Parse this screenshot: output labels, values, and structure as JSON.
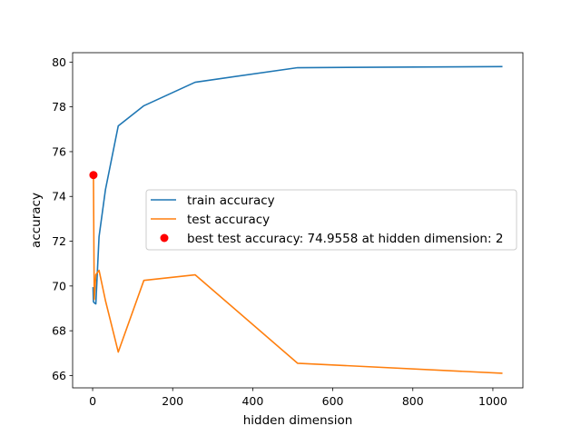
{
  "chart_data": {
    "type": "line",
    "title": "",
    "xlabel": "hidden dimension",
    "ylabel": "accuracy",
    "xlim": [
      -50,
      1075
    ],
    "ylim": [
      65.45,
      80.42
    ],
    "xticks": [
      0,
      200,
      400,
      600,
      800,
      1000
    ],
    "yticks": [
      66,
      68,
      70,
      72,
      74,
      76,
      78,
      80
    ],
    "grid": false,
    "legend_position": "center-right",
    "series": [
      {
        "name": "train accuracy",
        "color": "#1f77b4",
        "x": [
          1,
          2,
          4,
          8,
          16,
          32,
          64,
          128,
          256,
          512,
          1024
        ],
        "y": [
          69.95,
          69.3,
          69.25,
          69.2,
          72.2,
          74.3,
          77.15,
          78.05,
          79.1,
          79.75,
          79.8
        ]
      },
      {
        "name": "test accuracy",
        "color": "#ff7f0e",
        "x": [
          1,
          2,
          4,
          8,
          16,
          32,
          64,
          128,
          256,
          512,
          1024
        ],
        "y": [
          74.9,
          74.9558,
          69.4,
          70.5,
          70.7,
          69.35,
          67.05,
          70.25,
          70.5,
          66.55,
          66.1
        ]
      }
    ],
    "points": [
      {
        "name": "best test accuracy: 74.9558 at hidden dimension: 2",
        "color": "#ff0000",
        "x": 2,
        "y": 74.9558
      }
    ]
  }
}
